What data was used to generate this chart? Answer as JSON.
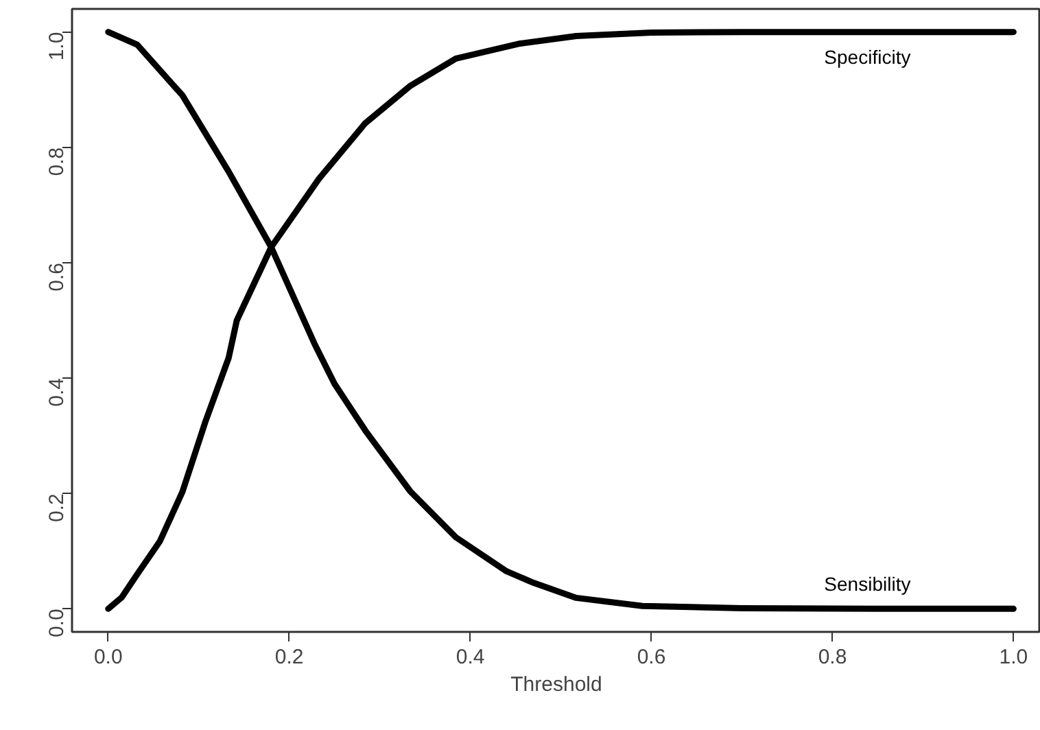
{
  "chart_data": {
    "type": "line",
    "xlabel": "Threshold",
    "xlim": [
      -0.04,
      1.03
    ],
    "ylim": [
      -0.04,
      1.04
    ],
    "xticks": [
      {
        "value": 0,
        "label": "0.0"
      },
      0.2,
      0.4,
      0.6,
      0.8,
      {
        "value": 1,
        "label": "1.0"
      }
    ],
    "yticks": [
      {
        "value": 0,
        "label": "0.0"
      },
      0.2,
      0.4,
      0.6,
      0.8,
      {
        "value": 1,
        "label": "1.0"
      }
    ],
    "grid": false,
    "marker": "none",
    "line_style": "solid",
    "series": [
      {
        "name": "Sensibility",
        "color": "#000000",
        "x": [
          0,
          0.032,
          0.082,
          0.133,
          0.18,
          0.228,
          0.25,
          0.284,
          0.334,
          0.384,
          0.44,
          0.47,
          0.517,
          0.59,
          0.7,
          0.85,
          1.0
        ],
        "values": [
          1.0,
          0.978,
          0.89,
          0.758,
          0.627,
          0.459,
          0.39,
          0.309,
          0.203,
          0.124,
          0.065,
          0.045,
          0.019,
          0.005,
          0.001,
          0.0,
          0.0
        ]
      },
      {
        "name": "Specificity",
        "color": "#000000",
        "x": [
          0,
          0.015,
          0.032,
          0.057,
          0.082,
          0.107,
          0.133,
          0.142,
          0.18,
          0.233,
          0.284,
          0.334,
          0.384,
          0.455,
          0.517,
          0.6,
          0.7,
          0.85,
          1.0
        ],
        "values": [
          0.0,
          0.02,
          0.06,
          0.117,
          0.203,
          0.323,
          0.435,
          0.5,
          0.627,
          0.746,
          0.842,
          0.907,
          0.954,
          0.98,
          0.993,
          0.999,
          1.0,
          1.0,
          1.0
        ]
      }
    ]
  }
}
